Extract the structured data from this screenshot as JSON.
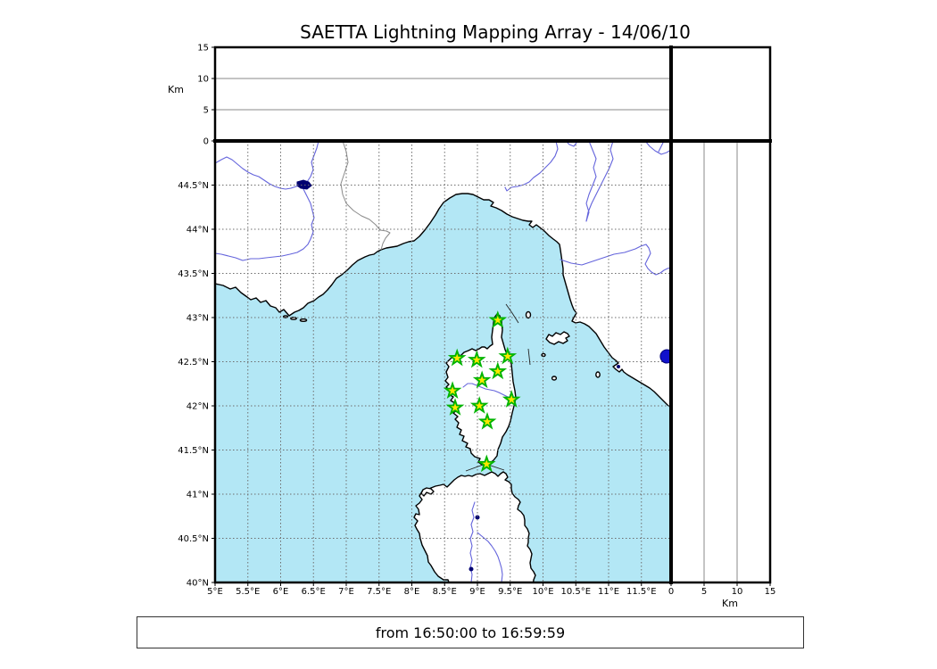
{
  "title": "SAETTA Lightning Mapping Array - 14/06/10",
  "footer": {
    "text": "from 16:50:00 to 16:59:59"
  },
  "chart_data": {
    "type": "scatter",
    "title": "SAETTA Lightning Mapping Array - 14/06/10",
    "time_range": "from 16:50:00 to 16:59:59",
    "layout_hint": "LMA 3-panel display: altitude-vs-longitude strip on top, lon/lat map in center, altitude-vs-latitude strip on right, empty histogram box top-right; dashed lat/lon grid on map, solid altitude gridlines in strips",
    "map_panel": {
      "xlim": [
        5,
        11.95
      ],
      "ylim": [
        40,
        45
      ],
      "grid": "dashed",
      "lon_ticks": [
        {
          "value": 5,
          "label": "5°E"
        },
        {
          "value": 5.5,
          "label": "5.5°E"
        },
        {
          "value": 6,
          "label": "6°E"
        },
        {
          "value": 6.5,
          "label": "6.5°E"
        },
        {
          "value": 7,
          "label": "7°E"
        },
        {
          "value": 7.5,
          "label": "7.5°E"
        },
        {
          "value": 8,
          "label": "8°E"
        },
        {
          "value": 8.5,
          "label": "8.5°E"
        },
        {
          "value": 9,
          "label": "9°E"
        },
        {
          "value": 9.5,
          "label": "9.5°E"
        },
        {
          "value": 10,
          "label": "10°E"
        },
        {
          "value": 10.5,
          "label": "10.5°E"
        },
        {
          "value": 11,
          "label": "11°E"
        },
        {
          "value": 11.5,
          "label": "11.5°E"
        }
      ],
      "lat_ticks": [
        {
          "value": 44.5,
          "label": "44.5°N"
        },
        {
          "value": 44,
          "label": "44°N"
        },
        {
          "value": 43.5,
          "label": "43.5°N"
        },
        {
          "value": 43,
          "label": "43°N"
        },
        {
          "value": 42.5,
          "label": "42.5°N"
        },
        {
          "value": 42,
          "label": "42°N"
        },
        {
          "value": 41.5,
          "label": "41.5°N"
        },
        {
          "value": 41,
          "label": "41°N"
        },
        {
          "value": 40.5,
          "label": "40.5°N"
        },
        {
          "value": 40,
          "label": "40°N"
        }
      ]
    },
    "alt_panel_top": {
      "ylabel": "Km",
      "ticks": [
        0,
        5,
        10,
        15
      ],
      "lim": [
        0,
        15
      ],
      "gridlines": [
        5,
        10
      ]
    },
    "alt_panel_right": {
      "xlabel": "Km",
      "ticks": [
        0,
        5,
        10,
        15
      ],
      "lim": [
        0,
        15
      ],
      "gridlines": [
        5,
        10
      ]
    },
    "stations": [
      {
        "lon": 9.31,
        "lat": 42.97
      },
      {
        "lon": 8.69,
        "lat": 42.54
      },
      {
        "lon": 8.99,
        "lat": 42.52
      },
      {
        "lon": 9.46,
        "lat": 42.56
      },
      {
        "lon": 9.31,
        "lat": 42.39
      },
      {
        "lon": 9.07,
        "lat": 42.29
      },
      {
        "lon": 8.62,
        "lat": 42.17
      },
      {
        "lon": 9.52,
        "lat": 42.07
      },
      {
        "lon": 9.03,
        "lat": 42.0
      },
      {
        "lon": 8.66,
        "lat": 41.98
      },
      {
        "lon": 9.15,
        "lat": 41.82
      },
      {
        "lon": 9.14,
        "lat": 41.34
      }
    ],
    "lightning_sources": [
      {
        "lon": 11.89,
        "lat": 42.56,
        "alt_km": 0
      }
    ],
    "colors": {
      "sea": "#b3e7f5",
      "land": "#ffffff",
      "coast": "#000000",
      "river": "#6464dc",
      "country_border": "#8a8a8a",
      "grid": "#6e6e6e",
      "station_fill": "#ffe800",
      "station_edge": "#00b400",
      "source_dot": "#1111cc"
    }
  }
}
